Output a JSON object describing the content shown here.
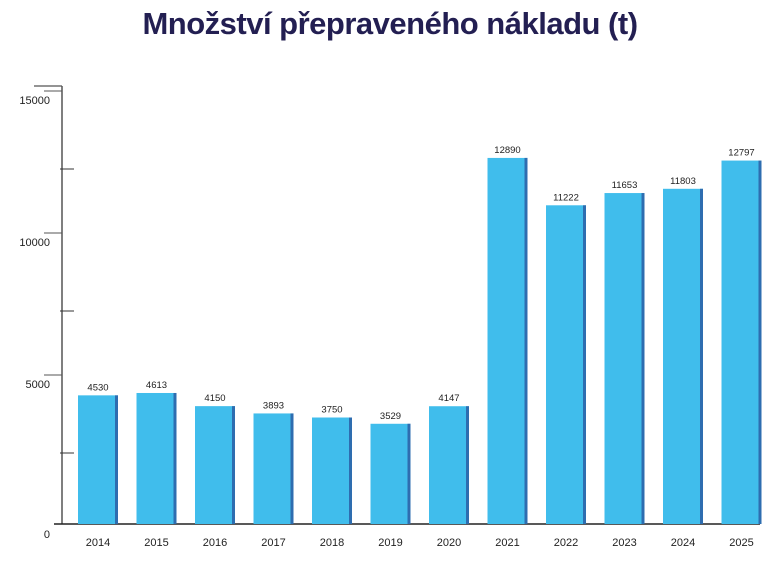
{
  "chart_data": {
    "type": "bar",
    "title": "Množství přepraveného nákladu (t)",
    "categories": [
      "2014",
      "2015",
      "2016",
      "2017",
      "2018",
      "2019",
      "2020",
      "2021",
      "2022",
      "2023",
      "2024",
      "2025"
    ],
    "values": [
      4530,
      4613,
      4150,
      3893,
      3750,
      3529,
      4147,
      12890,
      11222,
      11653,
      11803,
      12797
    ],
    "ylim": [
      0,
      15000
    ],
    "yticks": [
      0,
      5000,
      10000,
      15000
    ],
    "xlabel": "",
    "ylabel": "",
    "grid": false,
    "legend": "none",
    "colors": {
      "bar": "#40bdec",
      "bar_edge": "#2e6db0",
      "title": "#231f52",
      "axis": "#555555"
    }
  }
}
